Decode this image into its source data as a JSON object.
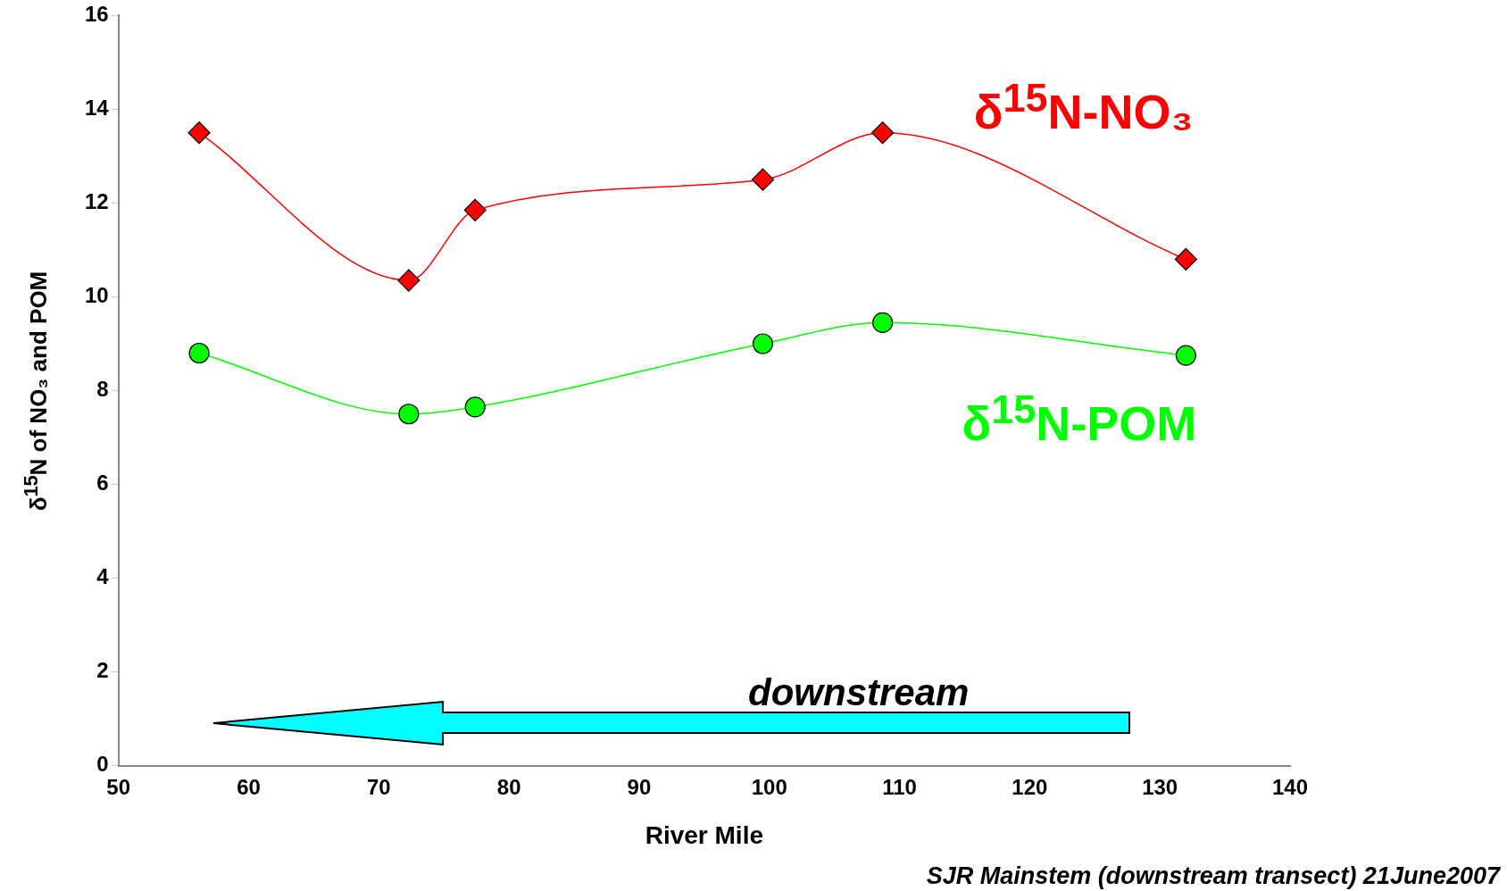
{
  "chart_data": {
    "type": "line",
    "xlabel": "River Mile",
    "ylabel": "δ$^{15}$N of NO₃ and POM",
    "xlim": [
      50,
      140
    ],
    "xticks": [
      50,
      60,
      70,
      80,
      90,
      100,
      110,
      120,
      130,
      140
    ],
    "ylim": [
      0,
      16
    ],
    "yticks": [
      0,
      2,
      4,
      6,
      8,
      10,
      12,
      14,
      16
    ],
    "grid": false,
    "legend": false,
    "series": [
      {
        "name": "δ$^{15}$N-NO₃",
        "color": "#ff0000",
        "marker": "diamond",
        "x": [
          56.2,
          72.3,
          77.4,
          99.5,
          108.7,
          132.0
        ],
        "values": [
          13.5,
          10.35,
          11.85,
          12.5,
          13.5,
          10.8
        ]
      },
      {
        "name": "δ$^{15}$N-POM",
        "color": "#00ff00",
        "marker": "circle",
        "x": [
          56.2,
          72.3,
          77.4,
          99.5,
          108.7,
          132.0
        ],
        "values": [
          8.8,
          7.5,
          7.65,
          9.0,
          9.45,
          8.75
        ]
      }
    ],
    "annotations": [
      "downstream",
      "SJR Mainstem (downstream transect) 21June2007"
    ]
  }
}
